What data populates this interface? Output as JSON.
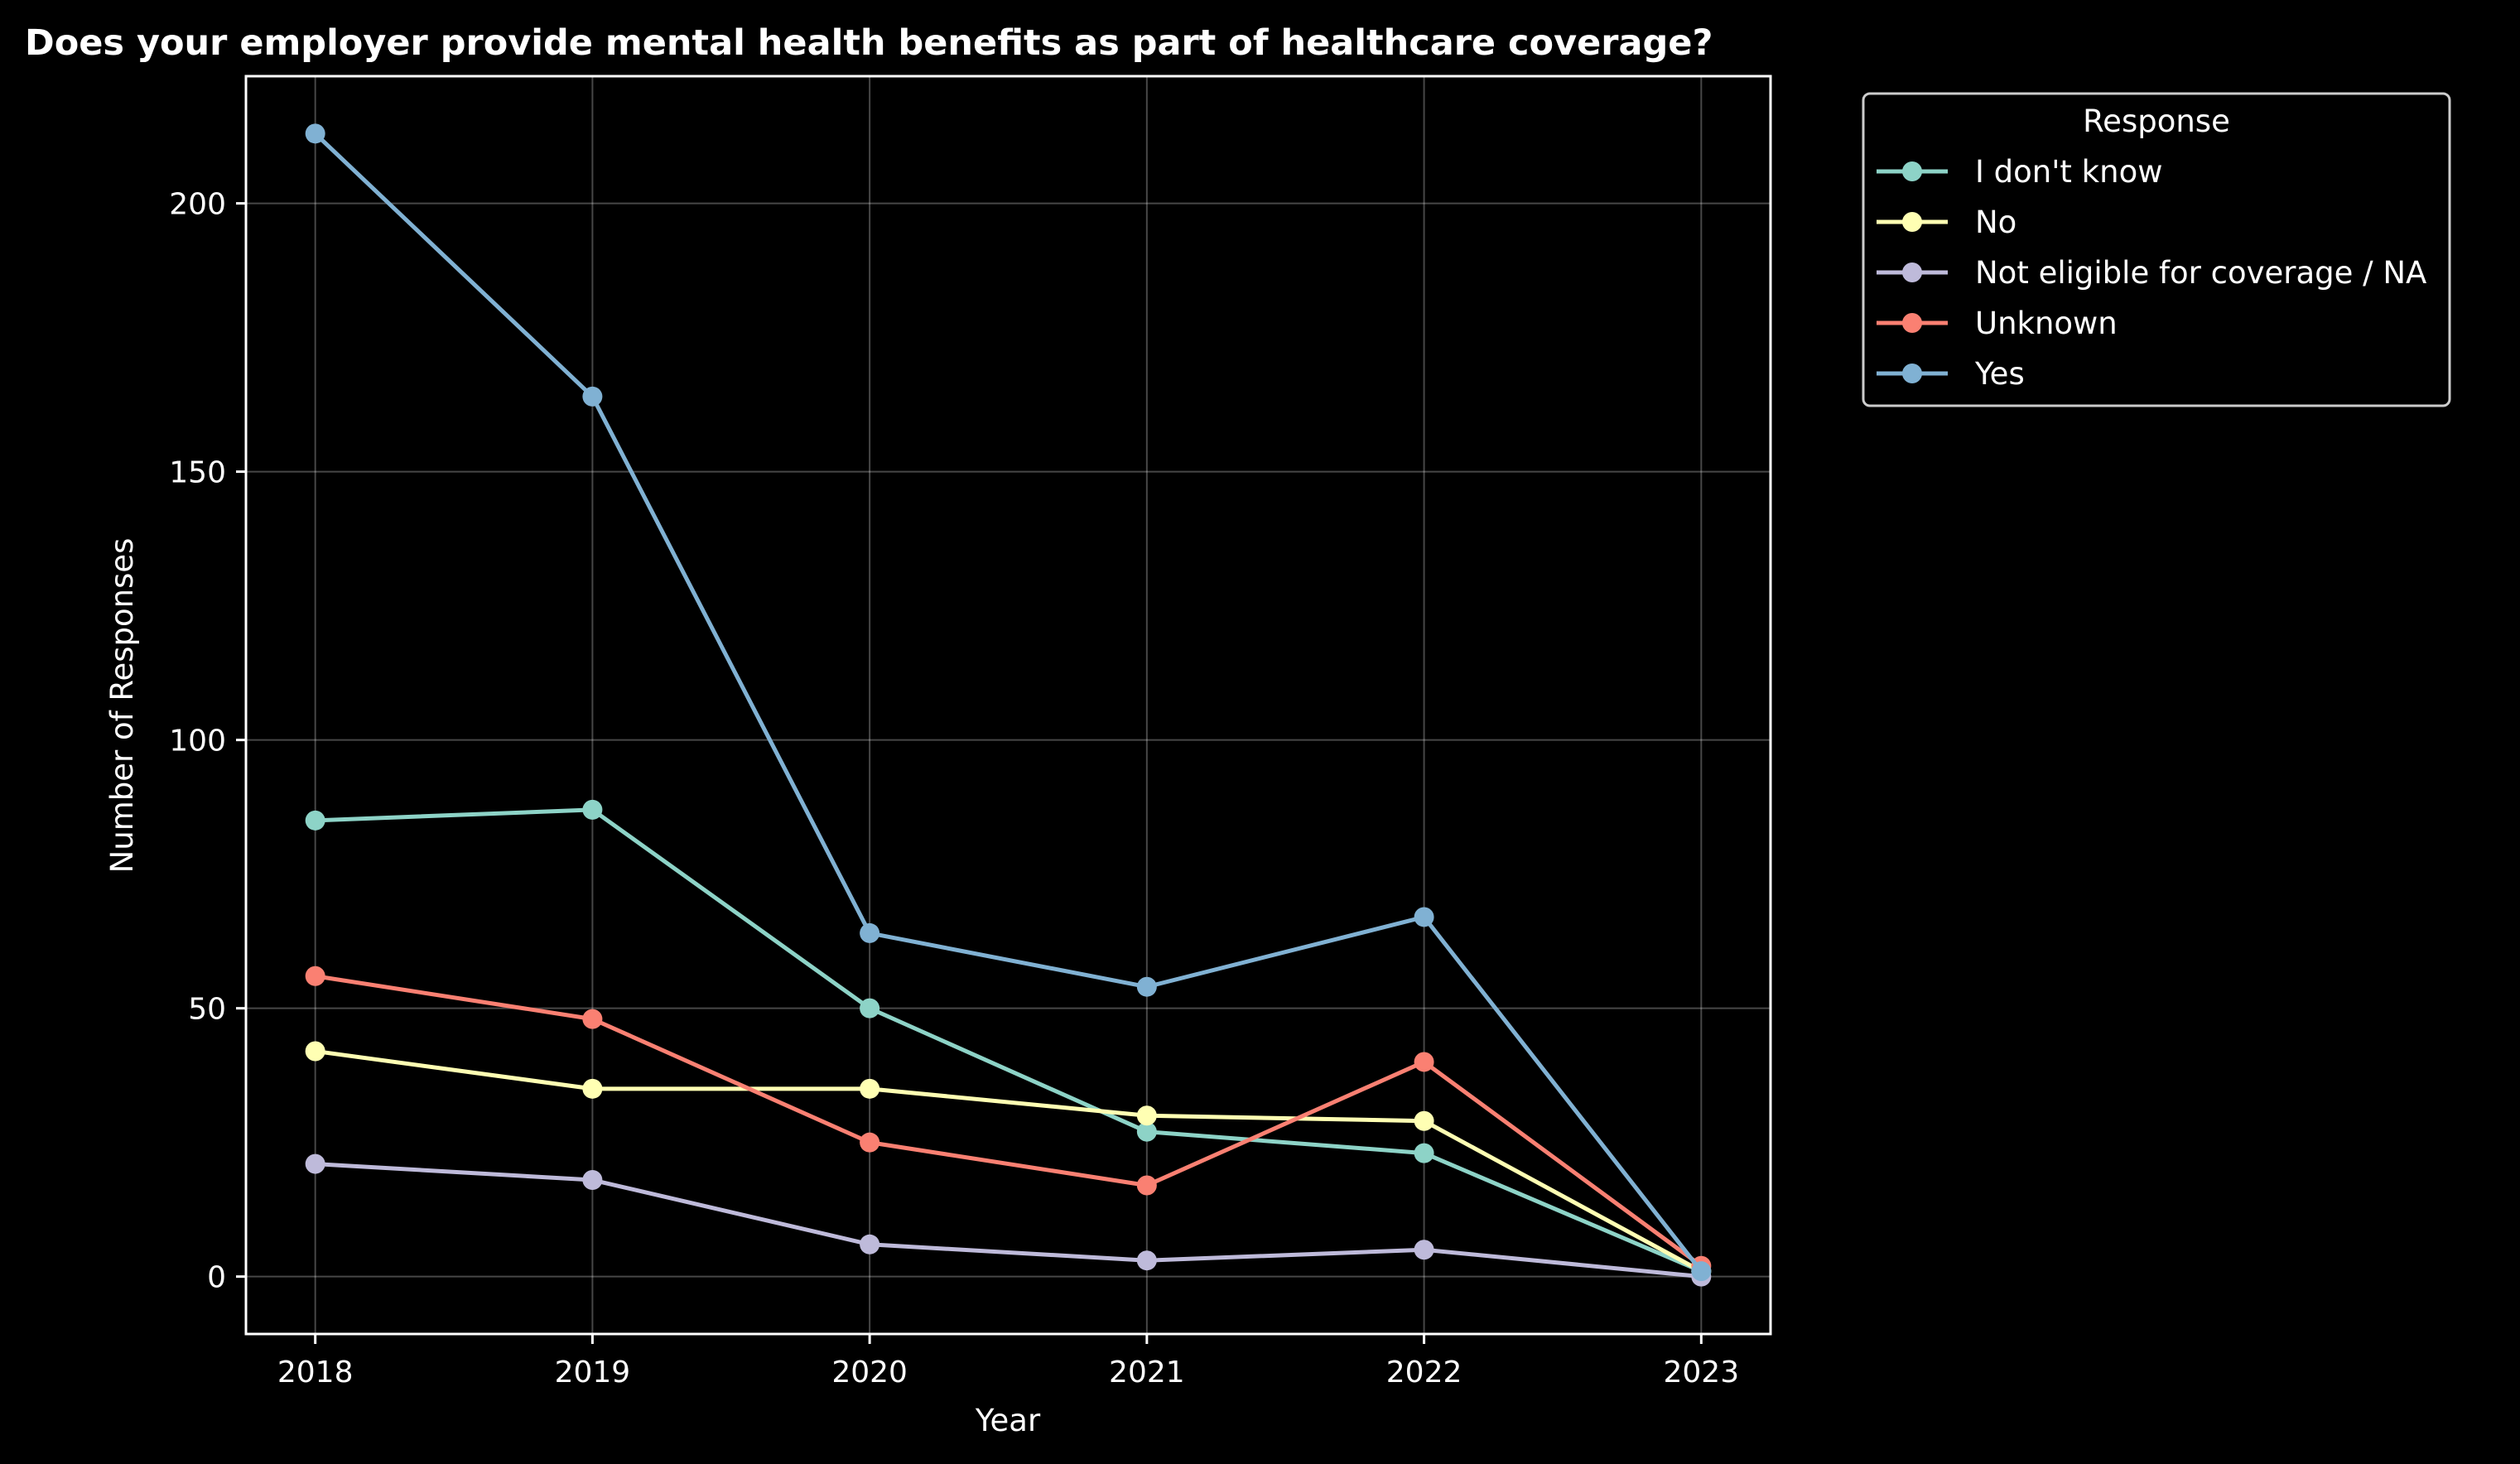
{
  "chart_data": {
    "type": "line",
    "title": "Does your employer provide mental health benefits as part of healthcare coverage?",
    "xlabel": "Year",
    "ylabel": "Number of Responses",
    "x": [
      "2018",
      "2019",
      "2020",
      "2021",
      "2022",
      "2023"
    ],
    "xlim": [
      2017.75,
      2023.25
    ],
    "ylim": [
      -10.7,
      223.7
    ],
    "yticks": [
      0,
      50,
      100,
      150,
      200
    ],
    "grid": true,
    "legend": {
      "title": "Response",
      "placement": "outside-top-right"
    },
    "series": [
      {
        "name": "I don't know",
        "color": "#8dd3c7",
        "values": [
          85,
          87,
          50,
          27,
          23,
          1
        ]
      },
      {
        "name": "No",
        "color": "#ffffb3",
        "values": [
          42,
          35,
          35,
          30,
          29,
          1
        ]
      },
      {
        "name": "Not eligible for coverage / NA",
        "color": "#bebada",
        "values": [
          21,
          18,
          6,
          3,
          5,
          0
        ]
      },
      {
        "name": "Unknown",
        "color": "#fa8072",
        "values": [
          56,
          48,
          25,
          17,
          40,
          2
        ]
      },
      {
        "name": "Yes",
        "color": "#80b1d3",
        "values": [
          213,
          164,
          64,
          54,
          67,
          1
        ]
      }
    ]
  }
}
